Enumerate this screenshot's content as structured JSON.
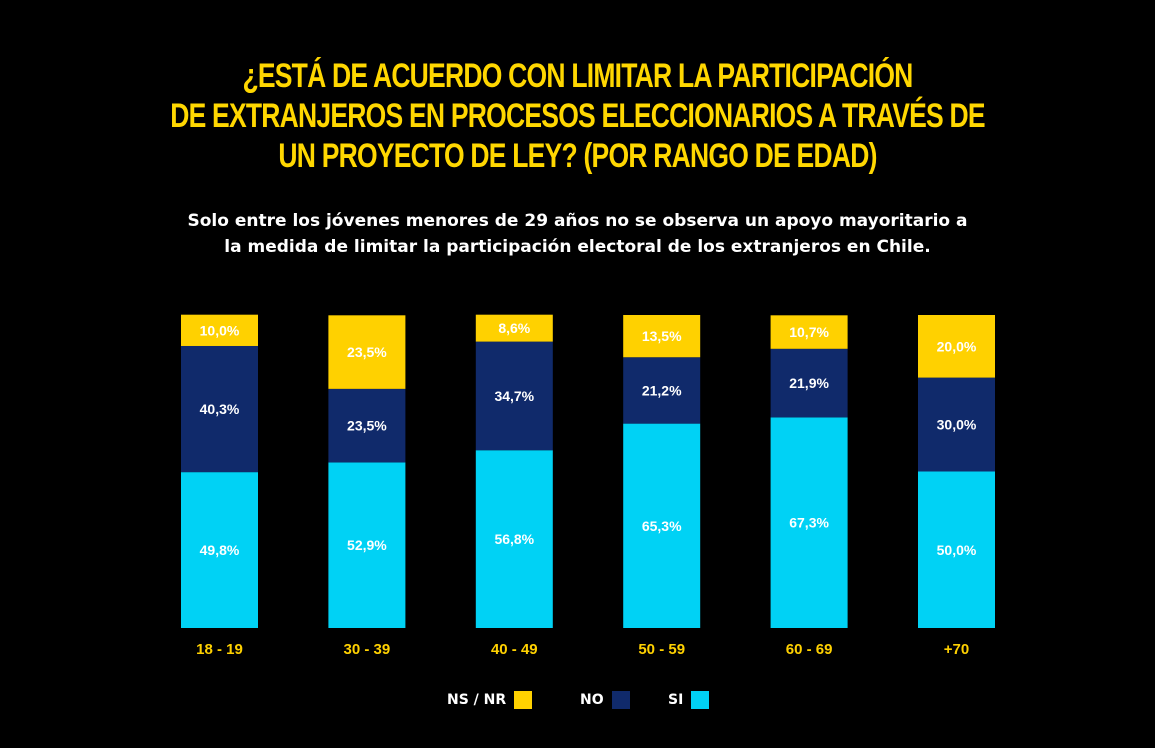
{
  "title_lines": [
    "¿ESTÁ DE ACUERDO CON LIMITAR LA PARTICIPACIÓN",
    "DE EXTRANJEROS EN PROCESOS ELECCIONARIOS A TRAVÉS DE",
    "UN PROYECTO DE LEY? (POR RANGO DE EDAD)"
  ],
  "subtitle_lines": [
    "Solo entre los jóvenes menores de 29 años no se observa un apoyo mayoritario a",
    "la medida de limitar la participación electoral de los extranjeros en Chile."
  ],
  "colors": {
    "background": "#000000",
    "yellow": "#FFD100",
    "navy": "#102A6B",
    "cyan": "#00D2F5",
    "title": "#FFD700"
  },
  "legend": [
    {
      "label": "NS / NR",
      "color": "#FFD100"
    },
    {
      "label": "NO",
      "color": "#102A6B"
    },
    {
      "label": "SI",
      "color": "#00D2F5"
    }
  ],
  "chart_data": {
    "type": "bar",
    "stacked": true,
    "categories": [
      "18 - 19",
      "30 - 39",
      "40 - 49",
      "50 - 59",
      "60 - 69",
      "+70"
    ],
    "series": [
      {
        "name": "SI",
        "color": "#00D2F5",
        "values": [
          49.8,
          52.9,
          56.8,
          65.3,
          67.3,
          50.0
        ],
        "labels": [
          "49,8%",
          "52,9%",
          "56,8%",
          "65,3%",
          "67,3%",
          "50,0%"
        ]
      },
      {
        "name": "NO",
        "color": "#102A6B",
        "values": [
          40.3,
          23.5,
          34.7,
          21.2,
          21.9,
          30.0
        ],
        "labels": [
          "40,3%",
          "23,5%",
          "34,7%",
          "21,2%",
          "21,9%",
          "30,0%"
        ]
      },
      {
        "name": "NS / NR",
        "color": "#FFD100",
        "values": [
          10.0,
          23.5,
          8.6,
          13.5,
          10.7,
          20.0
        ],
        "labels": [
          "10,0%",
          "23,5%",
          "8,6%",
          "13,5%",
          "10,7%",
          "20,0%"
        ]
      }
    ],
    "ylim": [
      0,
      100
    ],
    "grid": false,
    "legend_position": "bottom-center"
  }
}
